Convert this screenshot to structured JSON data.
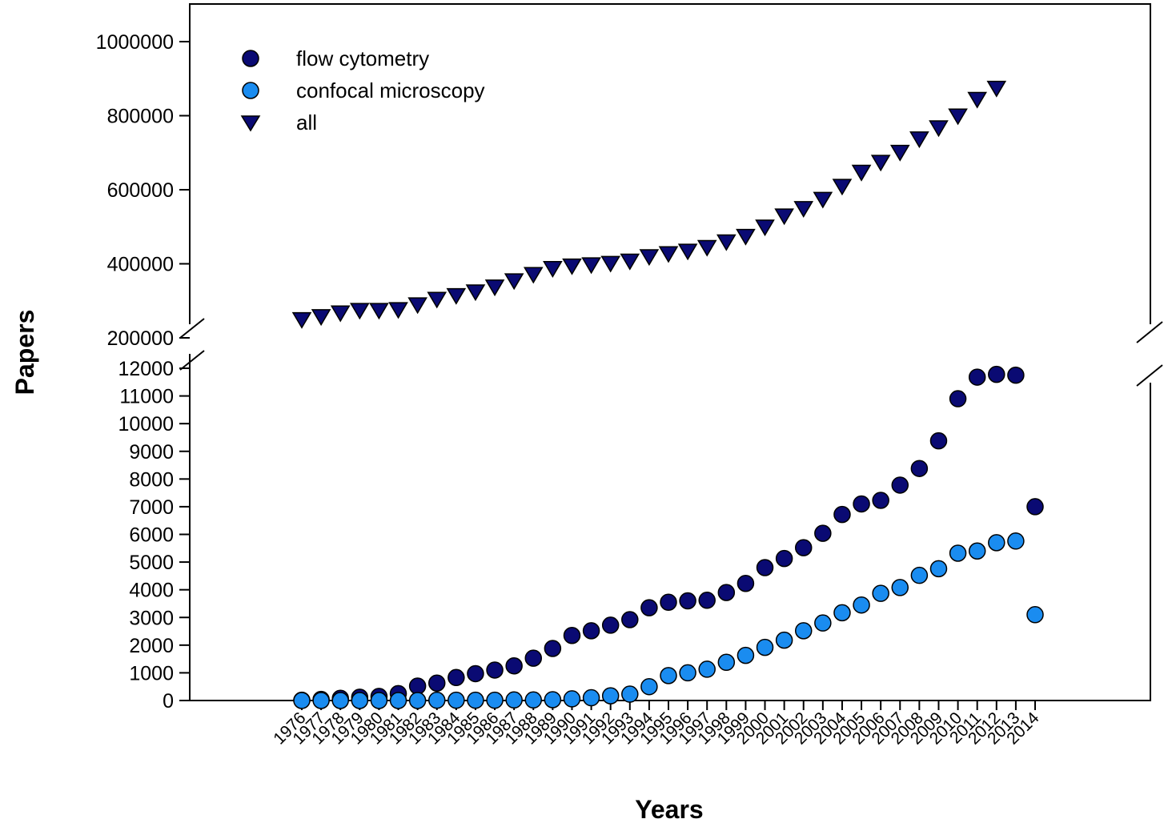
{
  "chart_data": {
    "type": "scatter",
    "xlabel": "Years",
    "ylabel": "Papers",
    "x": [
      1976,
      1977,
      1978,
      1979,
      1980,
      1981,
      1982,
      1983,
      1984,
      1985,
      1986,
      1987,
      1988,
      1989,
      1990,
      1991,
      1992,
      1993,
      1994,
      1995,
      1996,
      1997,
      1998,
      1999,
      2000,
      2001,
      2002,
      2003,
      2004,
      2005,
      2006,
      2007,
      2008,
      2009,
      2010,
      2011,
      2012,
      2013,
      2014
    ],
    "y_axis_break": {
      "lower_range": [
        0,
        12000
      ],
      "upper_range": [
        200000,
        1000000
      ]
    },
    "y_ticks_lower": [
      0,
      1000,
      2000,
      3000,
      4000,
      5000,
      6000,
      7000,
      8000,
      9000,
      10000,
      11000,
      12000
    ],
    "y_ticks_upper": [
      200000,
      400000,
      600000,
      800000,
      1000000
    ],
    "legend_position": "top-left",
    "grid": false,
    "series": [
      {
        "name": "flow cytometry",
        "marker": "circle",
        "color": "#0a0a73",
        "values": [
          10,
          40,
          80,
          120,
          150,
          250,
          520,
          630,
          830,
          970,
          1100,
          1250,
          1530,
          1880,
          2350,
          2520,
          2720,
          2920,
          3350,
          3550,
          3600,
          3620,
          3900,
          4230,
          4800,
          5130,
          5520,
          6040,
          6720,
          7100,
          7230,
          7780,
          8380,
          9380,
          10900,
          11680,
          11780,
          11750,
          7000
        ]
      },
      {
        "name": "confocal microscopy",
        "marker": "circle",
        "color": "#1a8cf0",
        "values": [
          0,
          0,
          0,
          0,
          0,
          0,
          0,
          10,
          10,
          10,
          10,
          20,
          20,
          30,
          60,
          100,
          170,
          230,
          500,
          900,
          1000,
          1130,
          1380,
          1630,
          1920,
          2180,
          2520,
          2800,
          3170,
          3450,
          3870,
          4080,
          4520,
          4760,
          5320,
          5400,
          5700,
          5760,
          3100
        ]
      },
      {
        "name": "all",
        "marker": "triangle-down",
        "color": "#0a0a73",
        "values": [
          250000,
          258000,
          268000,
          275000,
          275000,
          277000,
          290000,
          305000,
          315000,
          325000,
          338000,
          355000,
          372000,
          388000,
          395000,
          398000,
          402000,
          408000,
          420000,
          428000,
          435000,
          445000,
          460000,
          475000,
          500000,
          530000,
          550000,
          575000,
          610000,
          648000,
          675000,
          702000,
          738000,
          768000,
          800000,
          845000,
          875000,
          null,
          null
        ]
      }
    ]
  }
}
